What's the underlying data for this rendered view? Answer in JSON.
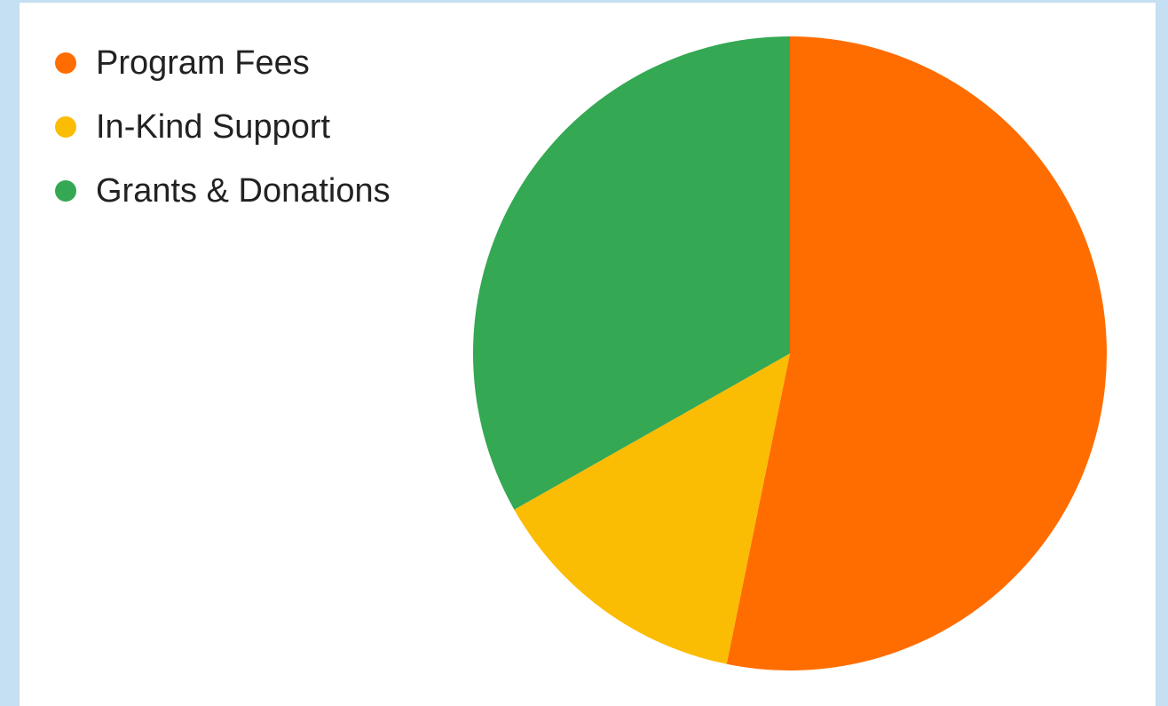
{
  "chart_data": {
    "type": "pie",
    "title": "",
    "legend_position": "top-left",
    "slices": [
      {
        "label": "Program Fees",
        "value": 53.2,
        "color": "#ff6d01"
      },
      {
        "label": "In-Kind Support",
        "value": 13.6,
        "color": "#fbbc04"
      },
      {
        "label": "Grants & Donations",
        "value": 33.2,
        "color": "#34a853"
      }
    ]
  }
}
